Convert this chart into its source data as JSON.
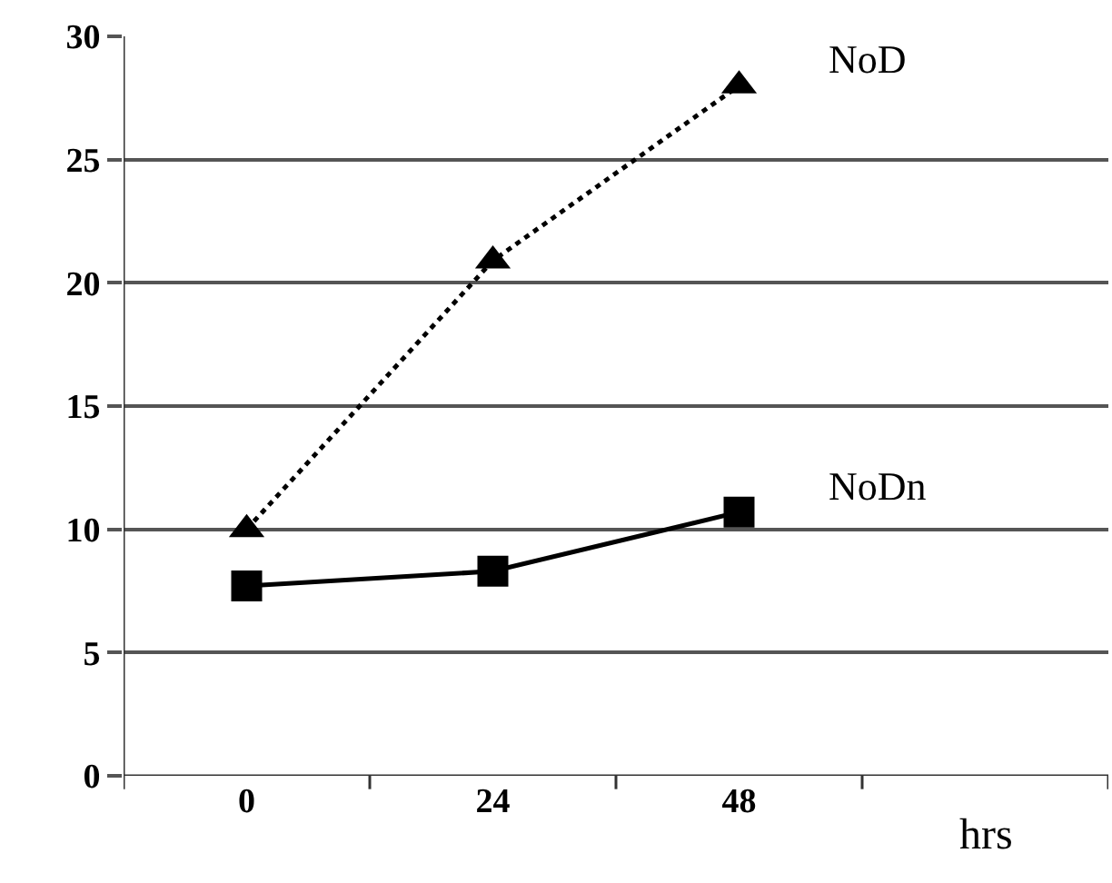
{
  "chart_data": {
    "type": "line",
    "xlabel": "hrs",
    "categories": [
      "0",
      "24",
      "48",
      null
    ],
    "series": [
      {
        "name": "NoD",
        "color": "#000000",
        "values": [
          10,
          20.9,
          28,
          null
        ],
        "marker": "triangle",
        "line_style": "dotted"
      },
      {
        "name": "NoDn",
        "color": "#000000",
        "values": [
          7.7,
          8.3,
          10.7,
          null
        ],
        "marker": "square",
        "line_style": "solid"
      }
    ],
    "ylim": [
      0,
      30
    ],
    "yticks": [
      0,
      5,
      10,
      15,
      20,
      25,
      30
    ],
    "grid": "y",
    "legend": false
  }
}
